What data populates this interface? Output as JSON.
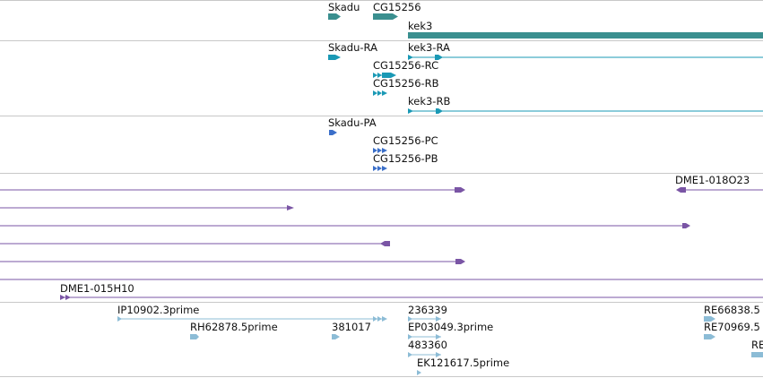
{
  "colors": {
    "gene": "#3a8f8f",
    "mrna": "#1a99b5",
    "protein": "#3b6fc9",
    "bac": "#7a55a5",
    "est": "#8cbcd6",
    "separator": "#c8c8c8"
  },
  "tracks": {
    "genes": {
      "labels": {
        "skadu": "Skadu",
        "cg15256": "CG15256",
        "kek3": "kek3"
      }
    },
    "transcripts": {
      "labels": {
        "skadu_ra": "Skadu-RA",
        "kek3_ra": "kek3-RA",
        "cg15256_rc": "CG15256-RC",
        "cg15256_rb": "CG15256-RB",
        "kek3_rb": "kek3-RB"
      }
    },
    "proteins": {
      "labels": {
        "skadu_pa": "Skadu-PA",
        "cg15256_pc": "CG15256-PC",
        "cg15256_pb": "CG15256-PB"
      }
    },
    "bacs": {
      "labels": {
        "dme1_018o23": "DME1-018O23",
        "dme1_015h10": "DME1-015H10"
      }
    },
    "ests": {
      "labels": {
        "ip10902": "IP10902.3prime",
        "rh62878": "RH62878.5prime",
        "n381017": "381017",
        "n236339": "236339",
        "ep03049": "EP03049.3prime",
        "n483360": "483360",
        "ek121617": "EK121617.5prime",
        "re66838": "RE66838.5",
        "re70969": "RE70969.5",
        "re_cut": "RE"
      }
    }
  }
}
